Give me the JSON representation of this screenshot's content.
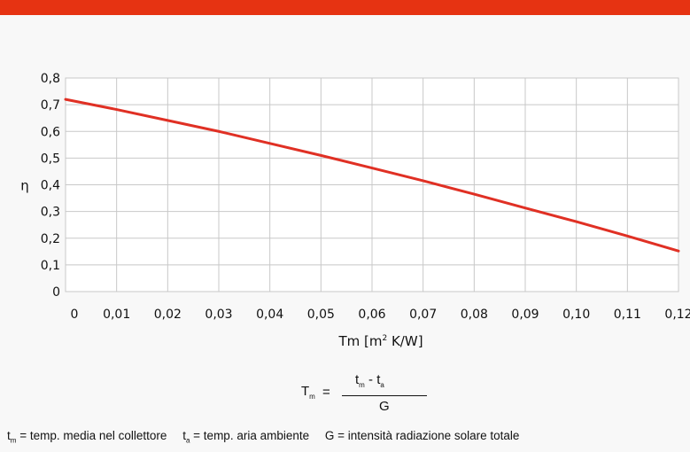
{
  "chart_data": {
    "type": "line",
    "title": "",
    "xlabel": "Tm [m² K/W]",
    "ylabel": "η",
    "xlim": [
      0,
      0.12
    ],
    "ylim": [
      0,
      0.8
    ],
    "x_ticks": [
      "0",
      "0,01",
      "0,02",
      "0,03",
      "0,04",
      "0,05",
      "0,06",
      "0,07",
      "0,08",
      "0,09",
      "0,10",
      "0,11",
      "0,12"
    ],
    "y_ticks": [
      "0",
      "0,1",
      "0,2",
      "0,3",
      "0,4",
      "0,5",
      "0,6",
      "0,7",
      "0,8"
    ],
    "grid": true,
    "series": [
      {
        "color": "#e03024",
        "x": [
          0,
          0.01,
          0.02,
          0.03,
          0.04,
          0.05,
          0.06,
          0.07,
          0.08,
          0.09,
          0.1,
          0.11,
          0.12
        ],
        "y": [
          0.72,
          0.682,
          0.641,
          0.6,
          0.555,
          0.51,
          0.463,
          0.415,
          0.365,
          0.313,
          0.262,
          0.208,
          0.152
        ]
      }
    ]
  },
  "formula": {
    "lhs_main": "T",
    "lhs_sub": "m",
    "equals": "=",
    "numerator_a": "t",
    "numerator_a_sub": "m",
    "minus": "-",
    "numerator_b": "t",
    "numerator_b_sub": "a",
    "denominator": "G"
  },
  "legend": {
    "item1_main": "t",
    "item1_sub": "m",
    "item1_text": "= temp. media nel collettore",
    "item2_main": "t",
    "item2_sub": "a",
    "item2_text": "= temp. aria ambiente",
    "item3_text": "G = intensità radiazione solare totale"
  },
  "colors": {
    "header_bar": "#e63312",
    "line": "#e03024",
    "grid": "#c8c8c8",
    "plot_background": "#ffffff"
  }
}
